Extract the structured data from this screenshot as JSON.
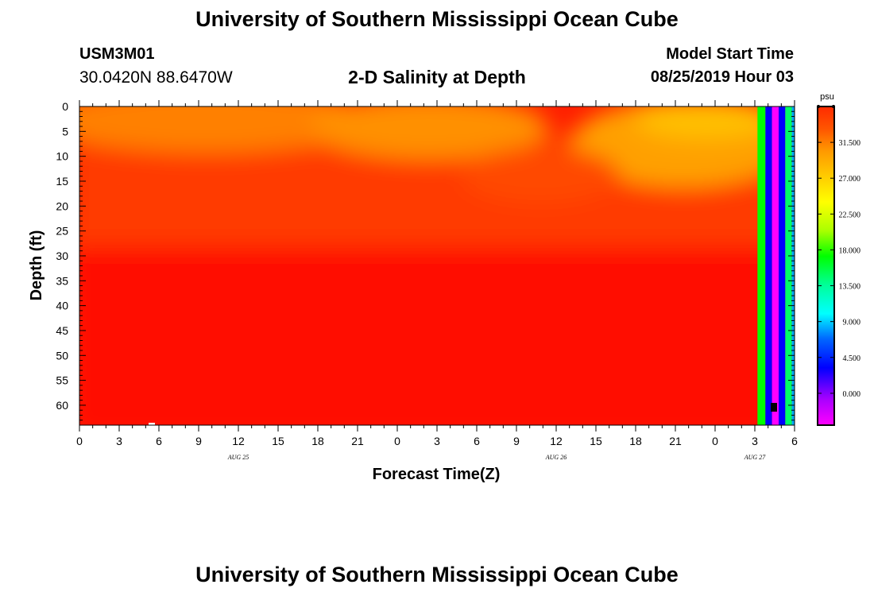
{
  "header": {
    "title": "University of Southern Mississippi Ocean Cube",
    "station_id": "USM3M01",
    "station_coords": "30.0420N 88.6470W",
    "chart_title": "2-D Salinity at Depth",
    "model_start_label": "Model Start Time",
    "model_start_value": "08/25/2019 Hour 03"
  },
  "footer": {
    "title": "University of Southern Mississippi Ocean Cube"
  },
  "chart_data": {
    "type": "heatmap",
    "title": "2-D Salinity at Depth",
    "xlabel": "Forecast Time(Z)",
    "ylabel": "Depth (ft)",
    "x_tick_labels": [
      "0",
      "3",
      "6",
      "9",
      "12",
      "15",
      "18",
      "21",
      "0",
      "3",
      "6",
      "9",
      "12",
      "15",
      "18",
      "21",
      "0",
      "3",
      "6"
    ],
    "x_date_labels": [
      {
        "label": "AUG 25",
        "at_hour": 12
      },
      {
        "label": "AUG 26",
        "at_hour": 36
      },
      {
        "label": "AUG 27",
        "at_hour": 51
      }
    ],
    "xlim_hours": [
      0,
      54
    ],
    "y_ticks": [
      0,
      5,
      10,
      15,
      20,
      25,
      30,
      35,
      40,
      45,
      50,
      55,
      60
    ],
    "ylim_ft": [
      0,
      64
    ],
    "y_inverted": true,
    "colorbar": {
      "unit": "psu",
      "tick_labels": [
        "31.500",
        "27.000",
        "22.500",
        "18.000",
        "13.500",
        "9.000",
        "4.500",
        "0.000"
      ],
      "tick_values": [
        31.5,
        27.0,
        22.5,
        18.0,
        13.5,
        9.0,
        4.5,
        0.0
      ],
      "range": [
        -4.0,
        36.0
      ],
      "colors": [
        "#ff00ff",
        "#8800ff",
        "#0000ff",
        "#00aaff",
        "#00ffff",
        "#00ff66",
        "#00ff00",
        "#aaff00",
        "#ffff00",
        "#ffcc00",
        "#ff9900",
        "#ff5500",
        "#ff0000"
      ]
    },
    "salinity_field_summary": {
      "surface_band_psu": [
        28.5,
        31.5
      ],
      "deep_band_psu": [
        34.0,
        35.5
      ],
      "surface_layer_depth_ft": [
        0,
        18
      ]
    },
    "edge_columns": [
      {
        "hour_start": 51.2,
        "hour_end": 51.8,
        "value_psu": 17.5
      },
      {
        "hour_start": 51.8,
        "hour_end": 52.3,
        "value_psu": 1.0
      },
      {
        "hour_start": 52.3,
        "hour_end": 52.8,
        "value_psu": -2.5
      },
      {
        "hour_start": 52.8,
        "hour_end": 53.3,
        "value_psu": 1.0
      },
      {
        "hour_start": 53.3,
        "hour_end": 53.8,
        "value_psu": 13.5
      },
      {
        "hour_start": 53.8,
        "hour_end": 54.0,
        "value_psu": 5.0
      }
    ]
  }
}
